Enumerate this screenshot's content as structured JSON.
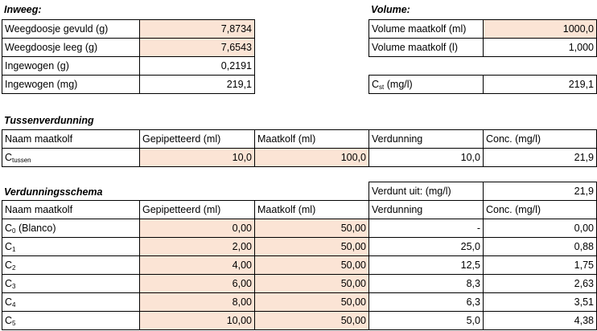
{
  "inweeg": {
    "title": "Inweeg:",
    "rows": [
      {
        "label": "Weegdoosje gevuld (g)",
        "value": "7,8734"
      },
      {
        "label": "Weegdoosje leeg (g)",
        "value": "7,6543"
      },
      {
        "label": "Ingewogen (g)",
        "value": "0,2191"
      },
      {
        "label": "Ingewogen (mg)",
        "value": "219,1"
      }
    ]
  },
  "volume": {
    "title": "Volume:",
    "rows": [
      {
        "label": "Volume maatkolf (ml)",
        "value": "1000,0"
      },
      {
        "label": "Volume maatkolf (l)",
        "value": "1,000"
      }
    ],
    "cst_label": "C",
    "cst_sub": "st",
    "cst_unit": " (mg/l)",
    "cst_value": "219,1"
  },
  "tussen": {
    "title": "Tussenverdunning",
    "headers": [
      "Naam maatkolf",
      "Gepipetteerd (ml)",
      "Maatkolf (ml)",
      "Verdunning",
      "Conc. (mg/l)"
    ],
    "row": {
      "name": "C",
      "sub": "tussen",
      "gepipetteerd": "10,0",
      "maatkolf": "100,0",
      "verdunning": "10,0",
      "conc": "21,9"
    }
  },
  "schema": {
    "title": "Verdunningsschema",
    "verdunt_uit_label": "Verdunt uit: (mg/l)",
    "verdunt_uit_value": "21,9",
    "headers": [
      "Naam maatkolf",
      "Gepipetteerd (ml)",
      "Maatkolf (ml)",
      "Verdunning",
      "Conc. (mg/l)"
    ],
    "rows": [
      {
        "name": "C",
        "sub": "0",
        "suffix": " (Blanco)",
        "gepipetteerd": "0,00",
        "maatkolf": "50,00",
        "verdunning": "-",
        "conc": "0,00"
      },
      {
        "name": "C",
        "sub": "1",
        "suffix": "",
        "gepipetteerd": "2,00",
        "maatkolf": "50,00",
        "verdunning": "25,0",
        "conc": "0,88"
      },
      {
        "name": "C",
        "sub": "2",
        "suffix": "",
        "gepipetteerd": "4,00",
        "maatkolf": "50,00",
        "verdunning": "12,5",
        "conc": "1,75"
      },
      {
        "name": "C",
        "sub": "3",
        "suffix": "",
        "gepipetteerd": "6,00",
        "maatkolf": "50,00",
        "verdunning": "8,3",
        "conc": "2,63"
      },
      {
        "name": "C",
        "sub": "4",
        "suffix": "",
        "gepipetteerd": "8,00",
        "maatkolf": "50,00",
        "verdunning": "6,3",
        "conc": "3,51"
      },
      {
        "name": "C",
        "sub": "5",
        "suffix": "",
        "gepipetteerd": "10,00",
        "maatkolf": "50,00",
        "verdunning": "5,0",
        "conc": "4,38"
      }
    ]
  }
}
